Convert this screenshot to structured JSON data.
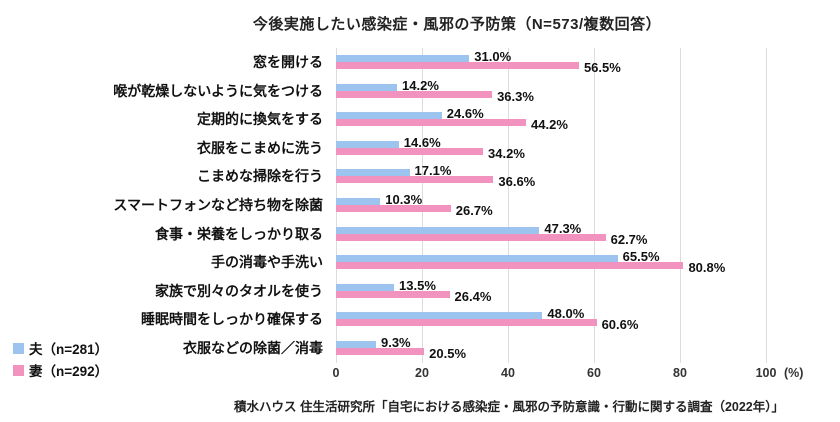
{
  "chart_data": {
    "type": "bar",
    "orientation": "horizontal",
    "title": "今後実施したい感染症・風邪の予防策（N=573/複数回答）",
    "categories": [
      "窓を開ける",
      "喉が乾燥しないように気をつける",
      "定期的に換気をする",
      "衣服をこまめに洗う",
      "こまめな掃除を行う",
      "スマートフォンなど持ち物を除菌",
      "食事・栄養をしっかり取る",
      "手の消毒や手洗い",
      "家族で別々のタオルを使う",
      "睡眠時間をしっかり確保する",
      "衣服などの除菌／消毒"
    ],
    "series": [
      {
        "name": "夫（n=281）",
        "color": "#9CC4EE",
        "values": [
          31.0,
          14.2,
          24.6,
          14.6,
          17.1,
          10.3,
          47.3,
          65.5,
          13.5,
          48.0,
          9.3
        ]
      },
      {
        "name": "妻（n=292）",
        "color": "#F292BE",
        "values": [
          56.5,
          36.3,
          44.2,
          34.2,
          36.6,
          26.7,
          62.7,
          80.8,
          26.4,
          60.6,
          20.5
        ]
      }
    ],
    "value_label_suffix": "%",
    "xlim": [
      0,
      100
    ],
    "x_ticks": [
      0,
      20,
      40,
      60,
      80,
      100
    ],
    "x_unit": "(%)",
    "grid": true,
    "legend_position": "bottom-left"
  },
  "footer": {
    "source": "積水ハウス 住生活研究所「自宅における感染症・風邪の予防意識・行動に関する調査（2022年）」"
  }
}
